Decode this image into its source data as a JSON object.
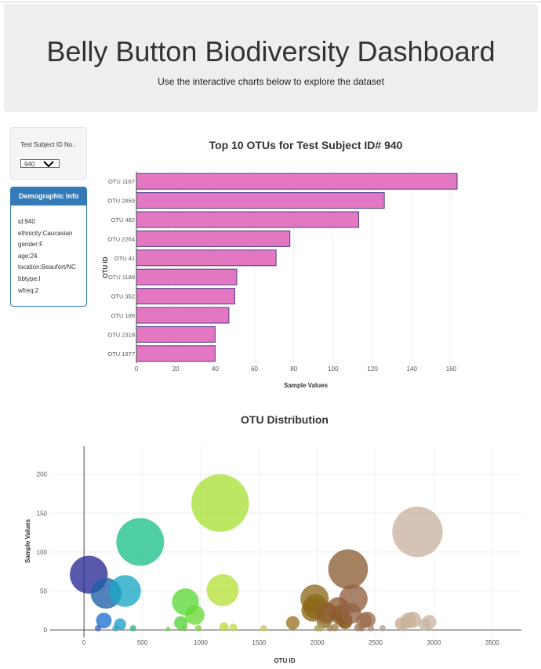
{
  "header": {
    "title": "Belly Button Biodiversity Dashboard",
    "subtitle": "Use the interactive charts below to explore the dataset"
  },
  "selector": {
    "label": "Test Subject ID No.:",
    "value": "940"
  },
  "demographics": {
    "title": "Demographic Info",
    "lines": [
      "id:940",
      "ethnicity:Caucasian",
      "gender:F",
      "age:24",
      "location:Beaufort/NC",
      "bbtype:I",
      "wfreq:2"
    ]
  },
  "chart_data": [
    {
      "type": "bar",
      "orientation": "horizontal",
      "title": "Top 10 OTUs for Test Subject ID# 940",
      "xlabel": "Sample Values",
      "ylabel": "OTU ID",
      "categories": [
        "OTU 1167",
        "OTU 2859",
        "OTU 482",
        "OTU 2264",
        "OTU 41",
        "OTU 1189",
        "OTU 352",
        "OTU 189",
        "OTU 2318",
        "OTU 1977"
      ],
      "values": [
        163,
        126,
        113,
        78,
        71,
        51,
        50,
        47,
        40,
        40
      ],
      "xlim": [
        0,
        163
      ],
      "xticks": [
        0,
        20,
        40,
        60,
        80,
        100,
        120,
        140,
        160
      ],
      "bar_color": "#e377c2",
      "bar_edge_color": "#4b3f8c",
      "grid": true
    },
    {
      "type": "scatter",
      "subtype": "bubble",
      "title": "OTU Distribution",
      "xlabel": "OTU ID",
      "ylabel": "Sample Values",
      "xlim": [
        -290,
        3750
      ],
      "ylim": [
        -10,
        236
      ],
      "xticks": [
        0,
        500,
        1000,
        1500,
        2000,
        2500,
        3000,
        3500
      ],
      "yticks": [
        0,
        50,
        100,
        150,
        200
      ],
      "grid": true,
      "points": [
        {
          "x": 41,
          "y": 71,
          "color": "#2a2a95"
        },
        {
          "x": 189,
          "y": 47,
          "color": "#1f5fa8"
        },
        {
          "x": 352,
          "y": 50,
          "color": "#1aa8c4"
        },
        {
          "x": 482,
          "y": 113,
          "color": "#1fc08c"
        },
        {
          "x": 1167,
          "y": 163,
          "color": "#a8e036"
        },
        {
          "x": 1189,
          "y": 51,
          "color": "#b6e03a"
        },
        {
          "x": 870,
          "y": 36,
          "color": "#5ed838"
        },
        {
          "x": 950,
          "y": 19,
          "color": "#6ad838"
        },
        {
          "x": 830,
          "y": 9,
          "color": "#56d43a"
        },
        {
          "x": 170,
          "y": 12,
          "color": "#1f6fd0"
        },
        {
          "x": 310,
          "y": 7,
          "color": "#1aa0c8"
        },
        {
          "x": 1977,
          "y": 40,
          "color": "#8e6a1e"
        },
        {
          "x": 1985,
          "y": 30,
          "color": "#8a6a18"
        },
        {
          "x": 1960,
          "y": 25,
          "color": "#8a6618"
        },
        {
          "x": 2060,
          "y": 12,
          "color": "#8a6a20"
        },
        {
          "x": 1790,
          "y": 9,
          "color": "#9a7424"
        },
        {
          "x": 2080,
          "y": 22,
          "color": "#8a5f2a"
        },
        {
          "x": 2180,
          "y": 27,
          "color": "#8d5a32"
        },
        {
          "x": 2200,
          "y": 19,
          "color": "#8d5a30"
        },
        {
          "x": 2230,
          "y": 13,
          "color": "#8a5c24"
        },
        {
          "x": 2240,
          "y": 10,
          "color": "#8a5c24"
        },
        {
          "x": 2264,
          "y": 78,
          "color": "#8b5e34"
        },
        {
          "x": 2310,
          "y": 40,
          "color": "#926240"
        },
        {
          "x": 2290,
          "y": 21,
          "color": "#936446"
        },
        {
          "x": 2400,
          "y": 12,
          "color": "#9c6a4a"
        },
        {
          "x": 2430,
          "y": 13,
          "color": "#9c6c4e"
        },
        {
          "x": 2859,
          "y": 126,
          "color": "#c9b4a2"
        },
        {
          "x": 2720,
          "y": 8,
          "color": "#c4aa92"
        },
        {
          "x": 2780,
          "y": 12,
          "color": "#c8ae98"
        },
        {
          "x": 2820,
          "y": 13,
          "color": "#c8b09a"
        },
        {
          "x": 2960,
          "y": 10,
          "color": "#cbb6a2"
        },
        {
          "x": 2920,
          "y": 7,
          "color": "#cbb6a2"
        },
        {
          "x": 2000,
          "y": 2,
          "color": "#a8a060"
        },
        {
          "x": 2030,
          "y": 2,
          "color": "#a8a060"
        },
        {
          "x": 2110,
          "y": 2,
          "color": "#a08050"
        },
        {
          "x": 2150,
          "y": 3,
          "color": "#a08050"
        },
        {
          "x": 2350,
          "y": 3,
          "color": "#a07858"
        },
        {
          "x": 2380,
          "y": 2,
          "color": "#a07858"
        },
        {
          "x": 2460,
          "y": 2,
          "color": "#a89080"
        },
        {
          "x": 2560,
          "y": 2,
          "color": "#b8a090"
        },
        {
          "x": 2740,
          "y": 3,
          "color": "#c8b0a0"
        },
        {
          "x": 1200,
          "y": 4,
          "color": "#b8d840"
        },
        {
          "x": 1280,
          "y": 3,
          "color": "#c0d850"
        },
        {
          "x": 860,
          "y": 2,
          "color": "#70d050"
        },
        {
          "x": 720,
          "y": 1,
          "color": "#70d050"
        },
        {
          "x": 270,
          "y": 2,
          "color": "#40a0c0"
        },
        {
          "x": 120,
          "y": 2,
          "color": "#4060c0"
        },
        {
          "x": 420,
          "y": 2,
          "color": "#30b090"
        },
        {
          "x": 980,
          "y": 2,
          "color": "#80d040"
        },
        {
          "x": 1540,
          "y": 2,
          "color": "#c8c850"
        }
      ]
    }
  ]
}
